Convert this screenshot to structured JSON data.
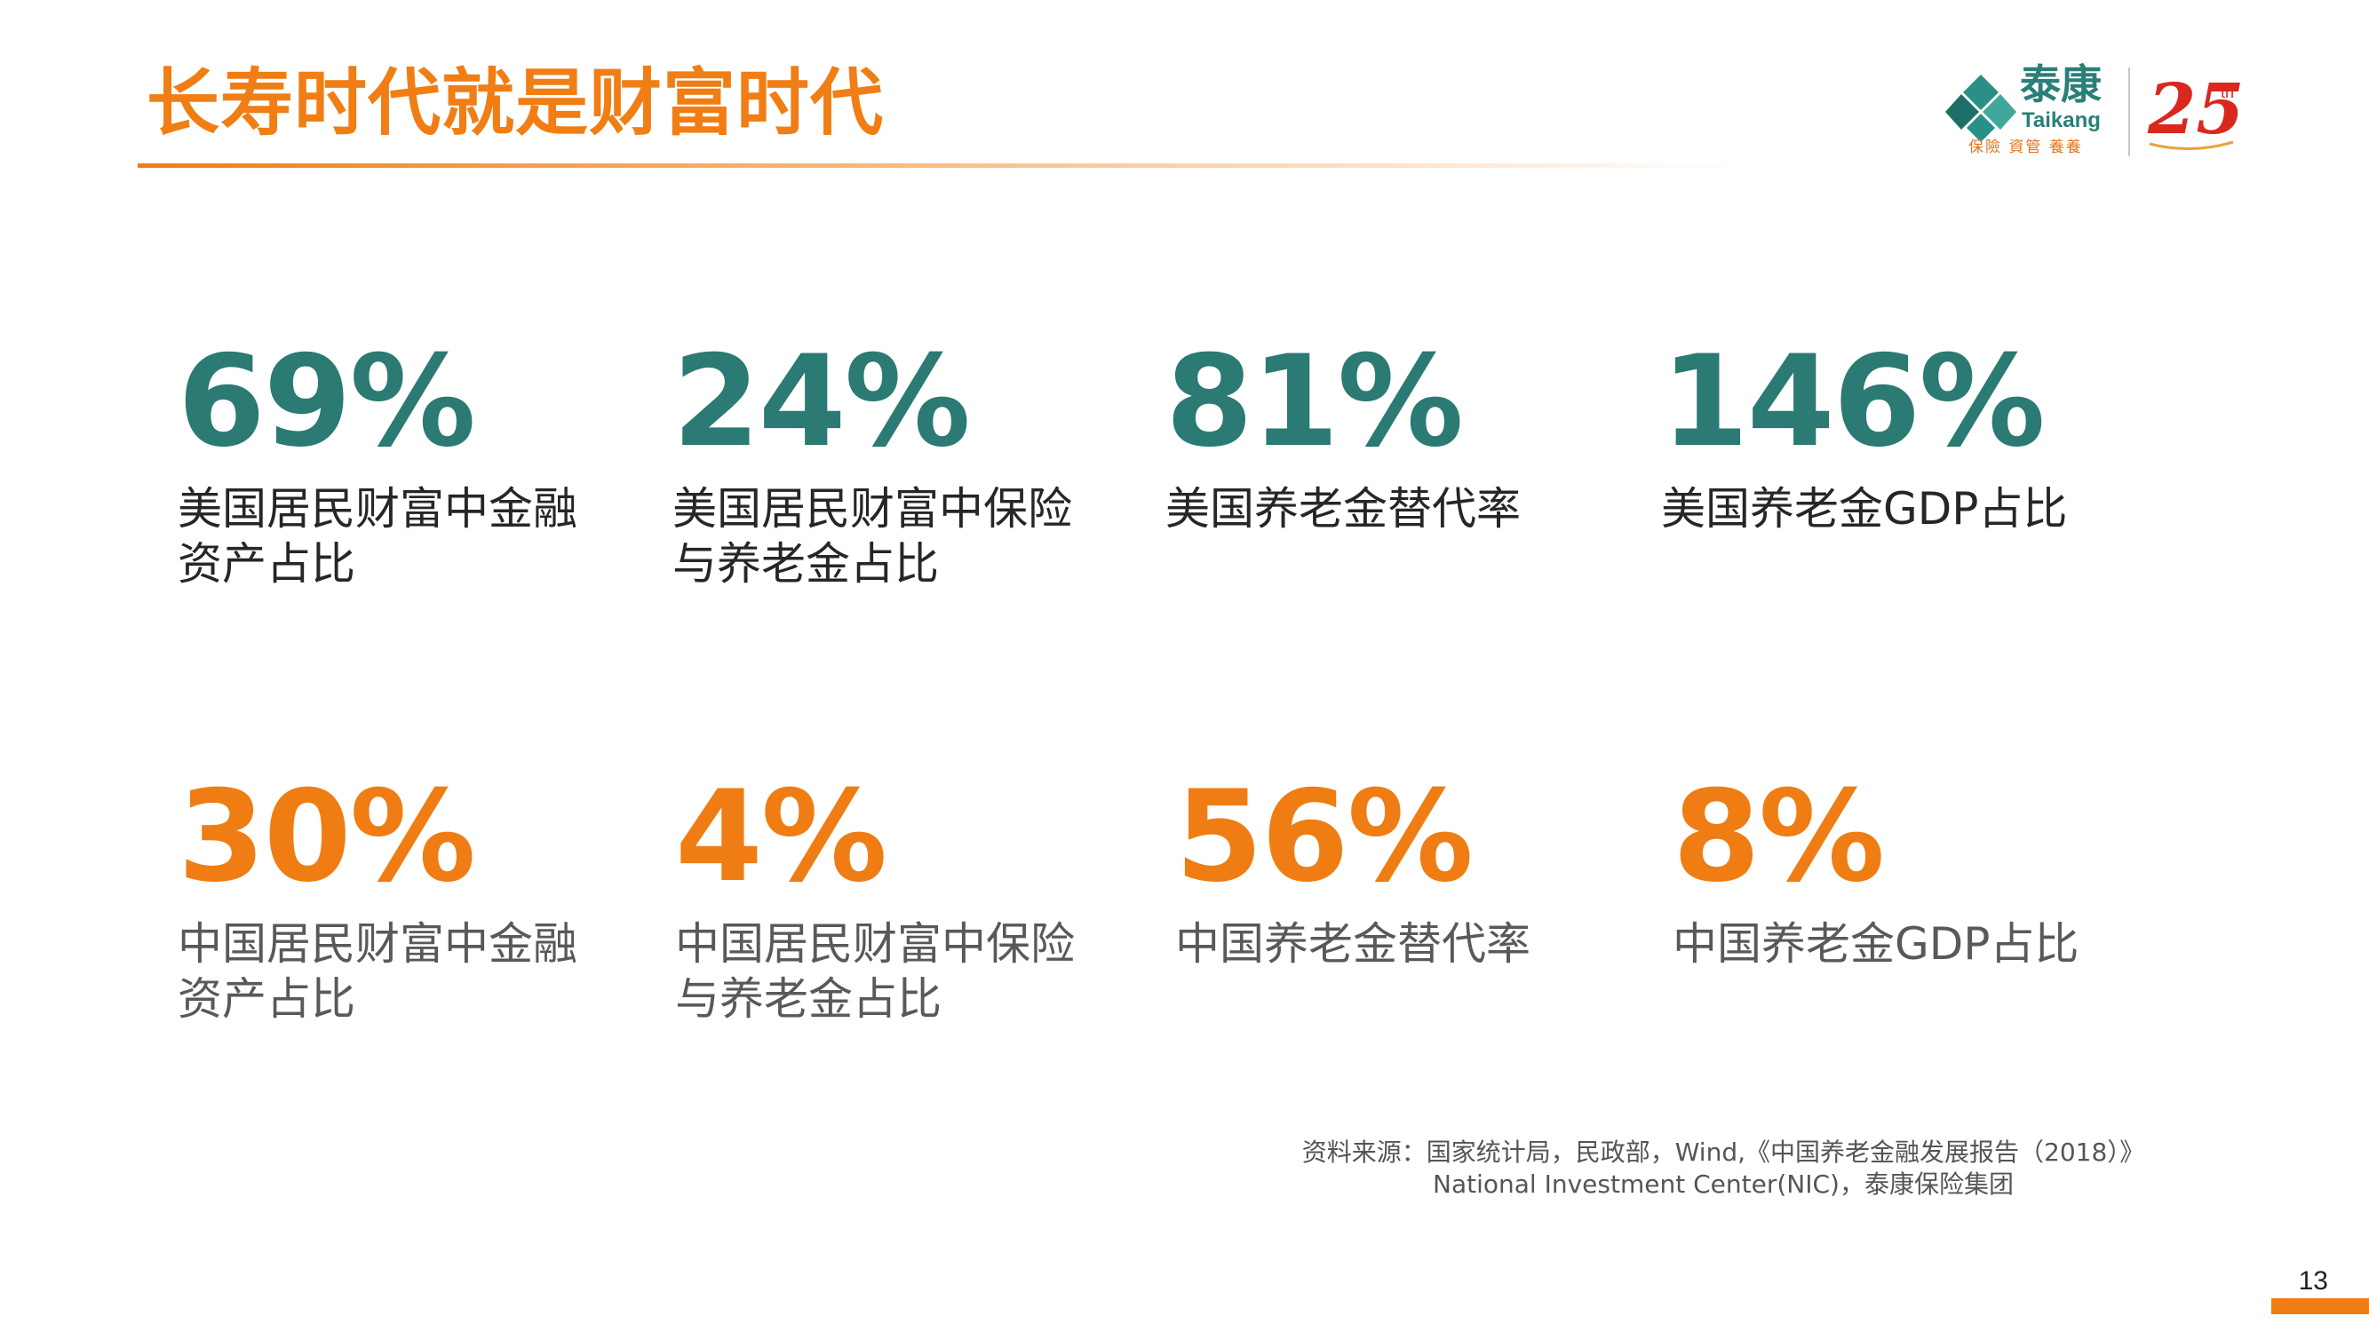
{
  "title": "长寿时代就是财富时代",
  "logo": {
    "cn_name": "泰康",
    "en_name": "Taikang",
    "slogan": "保險 資管 養養",
    "anniversary": "25",
    "anniversary_suffix": "th"
  },
  "stats": [
    {
      "value": "69%",
      "label": "美国居民财富中金融资产占比",
      "accent": "#2b7a73"
    },
    {
      "value": "24%",
      "label": "美国居民财富中保险与养老金占比",
      "accent": "#2b7a73"
    },
    {
      "value": "81%",
      "label": "美国养老金替代率",
      "accent": "#2b7a73"
    },
    {
      "value": "146%",
      "label": "美国养老金GDP占比",
      "accent": "#2b7a73"
    },
    {
      "value": "30%",
      "label": "中国居民财富中金融资产占比",
      "accent": "#ef7d13"
    },
    {
      "value": "4%",
      "label": "中国居民财富中保险与养老金占比",
      "accent": "#ef7d13"
    },
    {
      "value": "56%",
      "label": "中国养老金替代率",
      "accent": "#ef7d13"
    },
    {
      "value": "8%",
      "label": "中国养老金GDP占比",
      "accent": "#ef7d13"
    }
  ],
  "source": {
    "line1": "资料来源：国家统计局，民政部，Wind,《中国养老金融发展报告（2018）》",
    "line2": "National Investment Center(NIC)，泰康保险集团"
  },
  "page_number": "13"
}
